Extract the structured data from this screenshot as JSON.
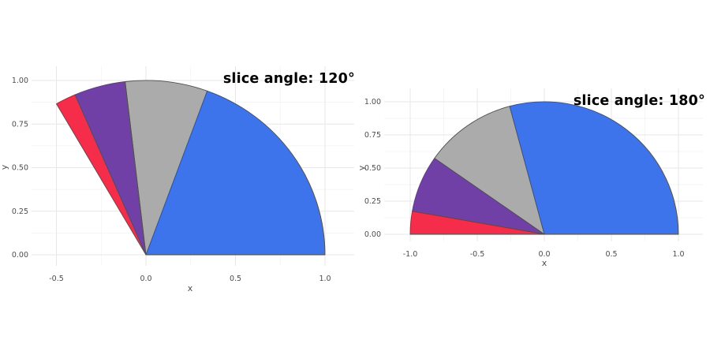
{
  "page": {
    "background_color": "#FFFFFF",
    "description": "Two fan/pie slice plots drawn on cartesian axes"
  },
  "styles": {
    "title_color": "#000000",
    "tick_label_color": "#4D4D4D",
    "axis_title_color": "#4D4D4D",
    "grid_major_color": "#E7E7E7",
    "grid_minor_color": "#F2F2F2",
    "slice_border_color": "#4E4E4E",
    "panel_background": "#FFFFFF"
  },
  "chart_data": [
    {
      "type": "pie",
      "subtype": "fan-slices-on-cartesian-axes",
      "title": "slice angle: 120°",
      "slice_total_angle_deg": 120,
      "center": [
        0,
        0
      ],
      "radius": 1,
      "xlabel": "x",
      "ylabel": "y",
      "x_ticks": [
        "-0.5",
        "0.0",
        "0.5",
        "1.0"
      ],
      "x_tick_values": [
        -0.5,
        0.0,
        0.5,
        1.0
      ],
      "y_ticks": [
        "0.00",
        "0.25",
        "0.50",
        "0.75",
        "1.00"
      ],
      "y_tick_values": [
        0,
        0.25,
        0.5,
        0.75,
        1.0
      ],
      "xlim": [
        -0.64,
        1.16
      ],
      "ylim": [
        -0.06,
        1.08
      ],
      "grid": "major+minor",
      "legend": "none",
      "slices": [
        {
          "label": "blue",
          "fraction": 0.583,
          "start_angle_deg": 0,
          "end_angle_deg": 70,
          "color": "#3D73EB"
        },
        {
          "label": "grey",
          "fraction": 0.222,
          "start_angle_deg": 70,
          "end_angle_deg": 96.67,
          "color": "#ABABAB"
        },
        {
          "label": "purple",
          "fraction": 0.139,
          "start_angle_deg": 96.67,
          "end_angle_deg": 113.33,
          "color": "#7040A7"
        },
        {
          "label": "red",
          "fraction": 0.056,
          "start_angle_deg": 113.33,
          "end_angle_deg": 120,
          "color": "#F52D4B"
        }
      ]
    },
    {
      "type": "pie",
      "subtype": "fan-slices-on-cartesian-axes",
      "title": "slice angle: 180°",
      "slice_total_angle_deg": 180,
      "center": [
        0,
        0
      ],
      "radius": 1,
      "xlabel": "x",
      "ylabel": "y",
      "x_ticks": [
        "-1.0",
        "-0.5",
        "0.0",
        "0.5",
        "1.0"
      ],
      "x_tick_values": [
        -1.0,
        -0.5,
        0.0,
        0.5,
        1.0
      ],
      "y_ticks": [
        "0.00",
        "0.25",
        "0.50",
        "0.75",
        "1.00"
      ],
      "y_tick_values": [
        0,
        0.25,
        0.5,
        0.75,
        1.0
      ],
      "xlim": [
        -1.19,
        1.18
      ],
      "ylim": [
        -0.06,
        1.1
      ],
      "grid": "major+minor",
      "legend": "none",
      "slices": [
        {
          "label": "blue",
          "fraction": 0.583,
          "start_angle_deg": 0,
          "end_angle_deg": 105,
          "color": "#3D73EB"
        },
        {
          "label": "grey",
          "fraction": 0.222,
          "start_angle_deg": 105,
          "end_angle_deg": 145,
          "color": "#ABABAB"
        },
        {
          "label": "purple",
          "fraction": 0.139,
          "start_angle_deg": 145,
          "end_angle_deg": 170,
          "color": "#7040A7"
        },
        {
          "label": "red",
          "fraction": 0.056,
          "start_angle_deg": 170,
          "end_angle_deg": 180,
          "color": "#F52D4B"
        }
      ]
    }
  ]
}
